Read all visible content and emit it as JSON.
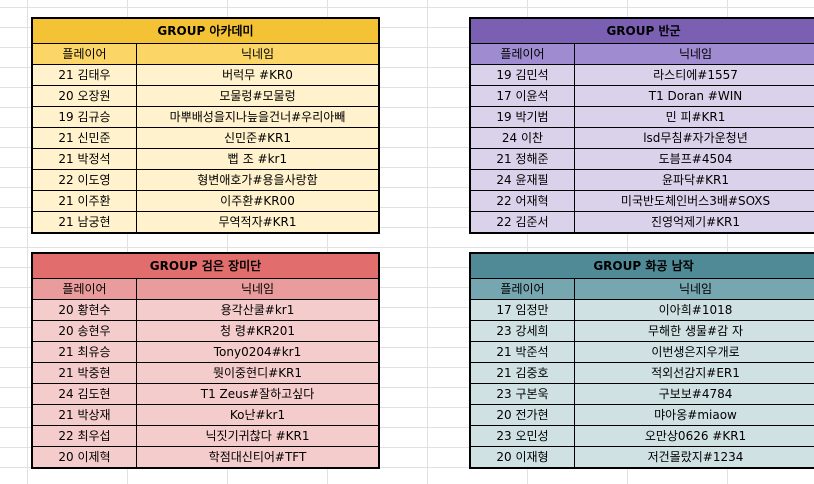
{
  "groups": [
    {
      "title": "GROUP 아카데미",
      "col_player": "플레이어",
      "col_nick": "닉네임",
      "rows": [
        {
          "player": "21 김태우",
          "nick": "버럭무 #KR0"
        },
        {
          "player": "20 오장원",
          "nick": "모물렁#모물렁"
        },
        {
          "player": "19 김규승",
          "nick": "마뿌배성을지나늪을건너#우리아빼"
        },
        {
          "player": "21 신민준",
          "nick": "신민준#KR1"
        },
        {
          "player": "21 박정석",
          "nick": "뻡 조 #kr1"
        },
        {
          "player": "22 이도영",
          "nick": "형변애호가#용을사랑함"
        },
        {
          "player": "21 이주환",
          "nick": "이주환#KR00"
        },
        {
          "player": "21 남궁현",
          "nick": "무역적자#KR1"
        }
      ]
    },
    {
      "title": "GROUP 반군",
      "col_player": "플레이어",
      "col_nick": "닉네임",
      "rows": [
        {
          "player": "19 김민석",
          "nick": "라스티에#1557"
        },
        {
          "player": "17 이윤석",
          "nick": "T1 Doran #WIN"
        },
        {
          "player": "19 박기범",
          "nick": "민 피#KR1"
        },
        {
          "player": "24 이찬",
          "nick": "lsd무침#자가운청년"
        },
        {
          "player": "21 정해준",
          "nick": "도븜프#4504"
        },
        {
          "player": "24 윤재필",
          "nick": "윤파닥#KR1"
        },
        {
          "player": "22 어재혁",
          "nick": "미국반도체인버스3배#SOXS"
        },
        {
          "player": "22 김준서",
          "nick": "진영억제기#KR1"
        }
      ]
    },
    {
      "title": "GROUP 검은 장미단",
      "col_player": "플레이어",
      "col_nick": "닉네임",
      "rows": [
        {
          "player": "20 황현수",
          "nick": "용각산쿨#kr1"
        },
        {
          "player": "20 송현우",
          "nick": "청 령#KR201"
        },
        {
          "player": "21 최유승",
          "nick": "Tony0204#kr1"
        },
        {
          "player": "21 박중현",
          "nick": "뭣이중현디#KR1"
        },
        {
          "player": "24 김도현",
          "nick": "T1 Zeus#잘하고싶다"
        },
        {
          "player": "21 박상재",
          "nick": "Ko난#kr1"
        },
        {
          "player": "22 최우섭",
          "nick": "닉짓기귀찮다 #KR1"
        },
        {
          "player": "20 이제혁",
          "nick": "학점대신티어#TFT"
        }
      ]
    },
    {
      "title": "GROUP 화공 남작",
      "col_player": "플레이어",
      "col_nick": "닉네임",
      "rows": [
        {
          "player": "17 임정만",
          "nick": "이아희#1018"
        },
        {
          "player": "23 강세희",
          "nick": "무해한 생물#감 자"
        },
        {
          "player": "21 박준석",
          "nick": "이번생은지우개로"
        },
        {
          "player": "21 김중호",
          "nick": "적외선감지#ER1"
        },
        {
          "player": "23 구본욱",
          "nick": "구보보#4784"
        },
        {
          "player": "20 전가현",
          "nick": "먀아옹#miaow"
        },
        {
          "player": "23 오민성",
          "nick": "오만상0626 #KR1"
        },
        {
          "player": "20 이재형",
          "nick": "저건몰랐지#1234"
        }
      ]
    }
  ]
}
